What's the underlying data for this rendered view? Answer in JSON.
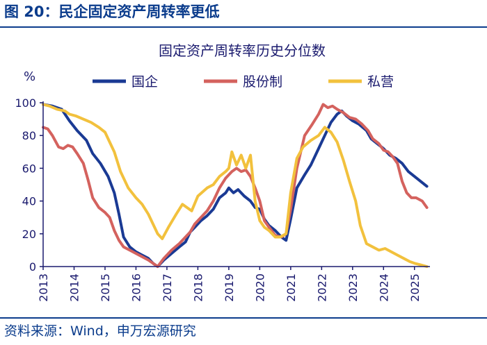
{
  "figure": {
    "label": "图 20：民企固定资产周转率更低",
    "source": "资料来源：Wind，申万宏源研究"
  },
  "colors": {
    "brand": "#0b3c8c",
    "axis": "#1a1a6e"
  },
  "chart_data": {
    "type": "line",
    "title": "固定资产周转率历史分位数",
    "ylabel": "%",
    "xlabel": "",
    "ylim": [
      0,
      100
    ],
    "xlim": [
      2013,
      2025.5
    ],
    "yticks": [
      0,
      20,
      40,
      60,
      80,
      100
    ],
    "xticks": [
      "2013",
      "2014",
      "2015",
      "2016",
      "2017",
      "2018",
      "2019",
      "2020",
      "2021",
      "2022",
      "2023",
      "2024",
      "2025"
    ],
    "legend_position": "top",
    "series": [
      {
        "name": "国企",
        "color": "#1a3a94",
        "points": [
          [
            2013.0,
            99
          ],
          [
            2013.3,
            98
          ],
          [
            2013.6,
            96
          ],
          [
            2013.85,
            89
          ],
          [
            2014.1,
            83
          ],
          [
            2014.4,
            77
          ],
          [
            2014.6,
            69
          ],
          [
            2014.85,
            63
          ],
          [
            2015.1,
            55
          ],
          [
            2015.3,
            45
          ],
          [
            2015.45,
            32
          ],
          [
            2015.6,
            18
          ],
          [
            2015.8,
            12
          ],
          [
            2016.0,
            9
          ],
          [
            2016.2,
            7
          ],
          [
            2016.4,
            5
          ],
          [
            2016.55,
            2
          ],
          [
            2016.7,
            0
          ],
          [
            2016.9,
            4
          ],
          [
            2017.15,
            8
          ],
          [
            2017.4,
            12
          ],
          [
            2017.6,
            15
          ],
          [
            2017.75,
            21
          ],
          [
            2017.9,
            24
          ],
          [
            2018.1,
            28
          ],
          [
            2018.3,
            31
          ],
          [
            2018.5,
            35
          ],
          [
            2018.7,
            42
          ],
          [
            2018.9,
            45
          ],
          [
            2019.0,
            48
          ],
          [
            2019.15,
            45
          ],
          [
            2019.3,
            47
          ],
          [
            2019.5,
            43
          ],
          [
            2019.7,
            40
          ],
          [
            2019.85,
            36
          ],
          [
            2020.0,
            35
          ],
          [
            2020.15,
            29
          ],
          [
            2020.3,
            25
          ],
          [
            2020.5,
            22
          ],
          [
            2020.7,
            18
          ],
          [
            2020.85,
            16
          ],
          [
            2021.0,
            29
          ],
          [
            2021.2,
            48
          ],
          [
            2021.45,
            56
          ],
          [
            2021.65,
            62
          ],
          [
            2021.9,
            72
          ],
          [
            2022.1,
            80
          ],
          [
            2022.3,
            88
          ],
          [
            2022.5,
            93
          ],
          [
            2022.65,
            95
          ],
          [
            2022.8,
            92
          ],
          [
            2023.0,
            89
          ],
          [
            2023.2,
            87
          ],
          [
            2023.45,
            83
          ],
          [
            2023.6,
            78
          ],
          [
            2023.8,
            75
          ],
          [
            2024.0,
            72
          ],
          [
            2024.2,
            68
          ],
          [
            2024.4,
            66
          ],
          [
            2024.6,
            63
          ],
          [
            2024.8,
            58
          ],
          [
            2025.0,
            55
          ],
          [
            2025.2,
            52
          ],
          [
            2025.4,
            49
          ]
        ]
      },
      {
        "name": "股份制",
        "color": "#d4625e",
        "points": [
          [
            2013.0,
            85
          ],
          [
            2013.15,
            84
          ],
          [
            2013.3,
            80
          ],
          [
            2013.5,
            73
          ],
          [
            2013.65,
            72
          ],
          [
            2013.8,
            74
          ],
          [
            2013.95,
            73
          ],
          [
            2014.1,
            69
          ],
          [
            2014.3,
            63
          ],
          [
            2014.45,
            53
          ],
          [
            2014.6,
            42
          ],
          [
            2014.8,
            36
          ],
          [
            2015.0,
            33
          ],
          [
            2015.15,
            30
          ],
          [
            2015.3,
            22
          ],
          [
            2015.45,
            16
          ],
          [
            2015.6,
            12
          ],
          [
            2015.8,
            10
          ],
          [
            2016.0,
            8
          ],
          [
            2016.2,
            6
          ],
          [
            2016.4,
            4
          ],
          [
            2016.55,
            2
          ],
          [
            2016.7,
            0
          ],
          [
            2016.9,
            5
          ],
          [
            2017.15,
            10
          ],
          [
            2017.4,
            14
          ],
          [
            2017.6,
            18
          ],
          [
            2017.75,
            21
          ],
          [
            2017.9,
            26
          ],
          [
            2018.1,
            30
          ],
          [
            2018.3,
            34
          ],
          [
            2018.5,
            40
          ],
          [
            2018.7,
            48
          ],
          [
            2018.9,
            54
          ],
          [
            2019.1,
            58
          ],
          [
            2019.25,
            60
          ],
          [
            2019.4,
            58
          ],
          [
            2019.55,
            59
          ],
          [
            2019.7,
            55
          ],
          [
            2019.85,
            48
          ],
          [
            2020.0,
            40
          ],
          [
            2020.15,
            28
          ],
          [
            2020.3,
            24
          ],
          [
            2020.5,
            19
          ],
          [
            2020.7,
            18
          ],
          [
            2020.85,
            20
          ],
          [
            2021.0,
            35
          ],
          [
            2021.2,
            60
          ],
          [
            2021.45,
            80
          ],
          [
            2021.7,
            87
          ],
          [
            2021.9,
            93
          ],
          [
            2022.05,
            99
          ],
          [
            2022.2,
            97
          ],
          [
            2022.35,
            98
          ],
          [
            2022.5,
            96
          ],
          [
            2022.7,
            94
          ],
          [
            2022.9,
            91
          ],
          [
            2023.1,
            90
          ],
          [
            2023.3,
            87
          ],
          [
            2023.5,
            83
          ],
          [
            2023.65,
            78
          ],
          [
            2023.85,
            75
          ],
          [
            2024.0,
            71
          ],
          [
            2024.15,
            70
          ],
          [
            2024.3,
            67
          ],
          [
            2024.45,
            63
          ],
          [
            2024.6,
            52
          ],
          [
            2024.75,
            45
          ],
          [
            2024.9,
            42
          ],
          [
            2025.05,
            42
          ],
          [
            2025.25,
            40
          ],
          [
            2025.4,
            36
          ]
        ]
      },
      {
        "name": "私营",
        "color": "#f2c13d",
        "points": [
          [
            2013.0,
            99
          ],
          [
            2013.2,
            98
          ],
          [
            2013.45,
            96
          ],
          [
            2013.7,
            95
          ],
          [
            2013.85,
            93
          ],
          [
            2014.05,
            92
          ],
          [
            2014.3,
            90
          ],
          [
            2014.55,
            88
          ],
          [
            2014.8,
            85
          ],
          [
            2015.0,
            82
          ],
          [
            2015.15,
            76
          ],
          [
            2015.3,
            70
          ],
          [
            2015.5,
            58
          ],
          [
            2015.75,
            48
          ],
          [
            2016.0,
            42
          ],
          [
            2016.2,
            38
          ],
          [
            2016.4,
            32
          ],
          [
            2016.55,
            26
          ],
          [
            2016.7,
            20
          ],
          [
            2016.85,
            17
          ],
          [
            2017.05,
            24
          ],
          [
            2017.3,
            32
          ],
          [
            2017.5,
            38
          ],
          [
            2017.65,
            36
          ],
          [
            2017.8,
            34
          ],
          [
            2018.0,
            43
          ],
          [
            2018.3,
            48
          ],
          [
            2018.5,
            50
          ],
          [
            2018.7,
            55
          ],
          [
            2018.9,
            58
          ],
          [
            2019.0,
            60
          ],
          [
            2019.1,
            70
          ],
          [
            2019.25,
            62
          ],
          [
            2019.4,
            68
          ],
          [
            2019.55,
            60
          ],
          [
            2019.7,
            68
          ],
          [
            2019.85,
            40
          ],
          [
            2020.0,
            28
          ],
          [
            2020.15,
            24
          ],
          [
            2020.3,
            22
          ],
          [
            2020.5,
            18
          ],
          [
            2020.65,
            18
          ],
          [
            2020.85,
            20
          ],
          [
            2021.0,
            45
          ],
          [
            2021.2,
            66
          ],
          [
            2021.4,
            73
          ],
          [
            2021.65,
            77
          ],
          [
            2021.9,
            80
          ],
          [
            2022.1,
            85
          ],
          [
            2022.3,
            82
          ],
          [
            2022.5,
            76
          ],
          [
            2022.7,
            65
          ],
          [
            2022.9,
            52
          ],
          [
            2023.1,
            40
          ],
          [
            2023.25,
            25
          ],
          [
            2023.45,
            14
          ],
          [
            2023.65,
            12
          ],
          [
            2023.85,
            10
          ],
          [
            2024.05,
            11
          ],
          [
            2024.25,
            9
          ],
          [
            2024.45,
            7
          ],
          [
            2024.65,
            5
          ],
          [
            2024.85,
            3
          ],
          [
            2025.0,
            2
          ],
          [
            2025.2,
            1
          ],
          [
            2025.4,
            0
          ]
        ]
      }
    ]
  }
}
